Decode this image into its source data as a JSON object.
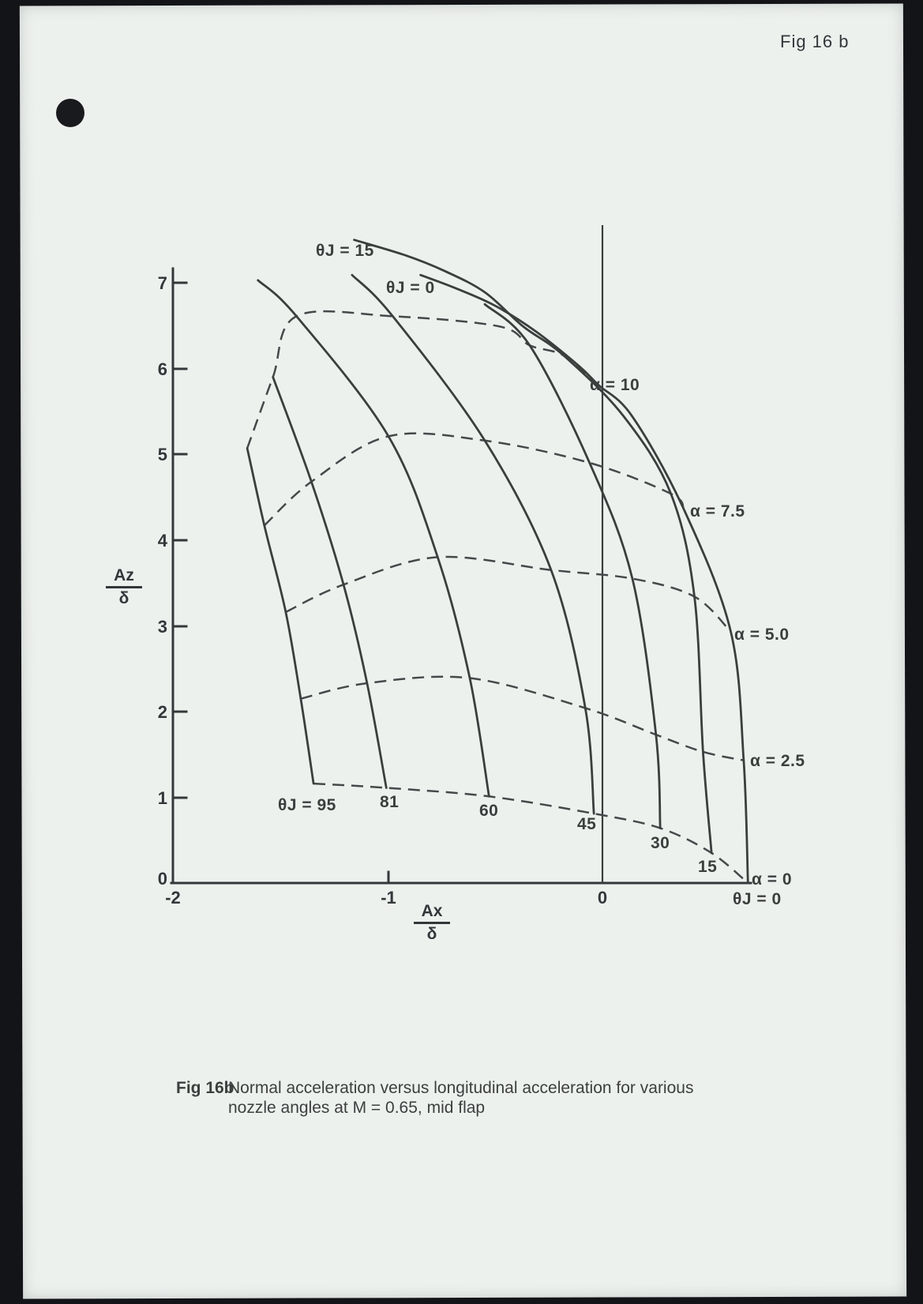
{
  "page": {
    "header": "Fig 16 b"
  },
  "caption": {
    "tag": "Fig 16b",
    "line1": "Normal acceleration versus longitudinal acceleration for various",
    "line2": "nozzle angles at M = 0.65, mid flap"
  },
  "axes": {
    "y": {
      "label_num": "Az",
      "label_den": "δ",
      "ticks": [
        "7",
        "6",
        "5",
        "4",
        "3",
        "2",
        "1",
        "0"
      ]
    },
    "x": {
      "label_num": "Ax",
      "label_den": "δ",
      "ticks": [
        "-2",
        "-1",
        "0"
      ]
    }
  },
  "labels": {
    "thetaj15_top": "θJ = 15",
    "thetaj0_top": "θJ = 0",
    "alpha10": "α = 10",
    "alpha75": "α = 7.5",
    "alpha50": "α = 5.0",
    "alpha25": "α = 2.5",
    "alpha0": "α = 0",
    "thetaj0_bottom": "θJ = 0",
    "thetaj95": "θJ = 95",
    "t81": "81",
    "t60": "60",
    "t45": "45",
    "t30": "30",
    "t15": "15"
  },
  "colors": {
    "paper": "#edf1ee",
    "ink": "#3a3f3e",
    "background": "#131418"
  },
  "chart_data": {
    "type": "line",
    "title": "Normal acceleration versus longitudinal acceleration for various nozzle angles at M = 0.65, mid flap",
    "xlabel": "Ax/δ",
    "ylabel": "Az/δ",
    "xlim": [
      -2,
      0.9
    ],
    "ylim": [
      0,
      7
    ],
    "x_ticks": [
      -2,
      -1,
      0
    ],
    "y_ticks": [
      0,
      1,
      2,
      3,
      4,
      5,
      6,
      7
    ],
    "grid": false,
    "legend_position": "none",
    "note": "Carpet plot: solid lines = constant nozzle angle θJ, dashed lines = constant incidence α. Points are [Ax/δ, Az/δ] at α nodes 0,2.5,5,7.5,10 plus extensions.",
    "solid_series": [
      {
        "key": "thetaj-95",
        "name": "θJ = 95",
        "points": [
          [
            -1.35,
            1.16
          ],
          [
            -1.41,
            2.15
          ],
          [
            -1.48,
            3.16
          ],
          [
            -1.58,
            4.17
          ],
          [
            -1.66,
            5.07
          ]
        ]
      },
      {
        "key": "thetaj-81",
        "name": "θJ = 81",
        "points": [
          [
            -1.01,
            1.11
          ],
          [
            -1.1,
            2.33
          ],
          [
            -1.21,
            3.48
          ],
          [
            -1.36,
            4.68
          ],
          [
            -1.54,
            5.9
          ]
        ]
      },
      {
        "key": "thetaj-60",
        "name": "θJ = 60",
        "points": [
          [
            -0.53,
            1.01
          ],
          [
            -0.62,
            2.39
          ],
          [
            -0.77,
            3.8
          ],
          [
            -1.0,
            5.21
          ],
          [
            -1.43,
            6.61
          ],
          [
            -1.61,
            7.03
          ]
        ]
      },
      {
        "key": "thetaj-45",
        "name": "θJ = 45",
        "points": [
          [
            -0.04,
            0.81
          ],
          [
            -0.08,
            2.04
          ],
          [
            -0.24,
            3.65
          ],
          [
            -0.55,
            5.16
          ],
          [
            -0.98,
            6.61
          ],
          [
            -1.17,
            7.09
          ]
        ]
      },
      {
        "key": "thetaj-30",
        "name": "θJ = 30",
        "points": [
          [
            0.27,
            0.64
          ],
          [
            0.25,
            1.73
          ],
          [
            0.14,
            3.55
          ],
          [
            -0.06,
            4.9
          ],
          [
            -0.34,
            6.27
          ],
          [
            -0.55,
            6.75
          ]
        ]
      },
      {
        "key": "thetaj-15",
        "name": "θJ = 15",
        "points": [
          [
            0.51,
            0.35
          ],
          [
            0.47,
            1.53
          ],
          [
            0.43,
            3.34
          ],
          [
            0.32,
            4.54
          ],
          [
            0.1,
            5.44
          ],
          [
            -0.18,
            6.15
          ],
          [
            -0.37,
            6.49
          ],
          [
            -0.55,
            6.89
          ],
          [
            -0.74,
            7.14
          ],
          [
            -0.92,
            7.32
          ],
          [
            -1.16,
            7.5
          ]
        ]
      },
      {
        "key": "thetaj-0",
        "name": "θJ = 0",
        "points": [
          [
            0.68,
            0.0
          ],
          [
            0.66,
            1.43
          ],
          [
            0.6,
            2.93
          ],
          [
            0.38,
            4.36
          ],
          [
            0.14,
            5.44
          ],
          [
            -0.02,
            5.81
          ],
          [
            -0.11,
            6.03
          ],
          [
            -0.31,
            6.43
          ],
          [
            -0.5,
            6.73
          ],
          [
            -0.68,
            6.93
          ],
          [
            -0.85,
            7.09
          ]
        ]
      }
    ],
    "dashed_series": [
      {
        "key": "alpha-10",
        "name": "α = 10",
        "points": [
          [
            -1.66,
            5.07
          ],
          [
            -1.54,
            5.9
          ],
          [
            -1.43,
            6.61
          ],
          [
            -0.98,
            6.61
          ],
          [
            -0.48,
            6.49
          ],
          [
            -0.34,
            6.27
          ],
          [
            -0.18,
            6.15
          ],
          [
            -0.02,
            5.81
          ]
        ]
      },
      {
        "key": "alpha-7-5",
        "name": "α = 7.5",
        "points": [
          [
            -1.58,
            4.17
          ],
          [
            -1.36,
            4.68
          ],
          [
            -1.0,
            5.21
          ],
          [
            -0.55,
            5.16
          ],
          [
            -0.06,
            4.9
          ],
          [
            0.32,
            4.54
          ],
          [
            0.38,
            4.36
          ]
        ]
      },
      {
        "key": "alpha-5-0",
        "name": "α = 5.0",
        "points": [
          [
            -1.48,
            3.16
          ],
          [
            -1.21,
            3.48
          ],
          [
            -0.77,
            3.8
          ],
          [
            -0.24,
            3.65
          ],
          [
            0.14,
            3.55
          ],
          [
            0.43,
            3.34
          ],
          [
            0.6,
            2.93
          ]
        ]
      },
      {
        "key": "alpha-2-5",
        "name": "α = 2.5",
        "points": [
          [
            -1.41,
            2.15
          ],
          [
            -1.1,
            2.33
          ],
          [
            -0.62,
            2.39
          ],
          [
            -0.08,
            2.04
          ],
          [
            0.25,
            1.73
          ],
          [
            0.47,
            1.53
          ],
          [
            0.66,
            1.43
          ]
        ]
      },
      {
        "key": "alpha-0",
        "name": "α = 0",
        "points": [
          [
            -1.35,
            1.16
          ],
          [
            -1.01,
            1.11
          ],
          [
            -0.53,
            1.01
          ],
          [
            -0.04,
            0.81
          ],
          [
            0.27,
            0.64
          ],
          [
            0.51,
            0.35
          ],
          [
            0.68,
            0.0
          ]
        ]
      }
    ]
  }
}
